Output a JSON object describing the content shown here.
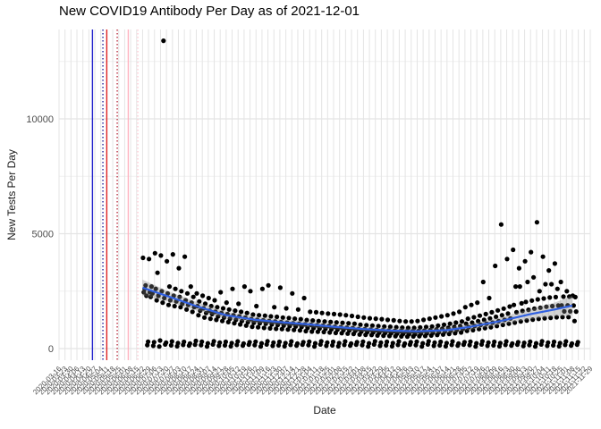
{
  "title": "New COVID19 Antibody Per Day as of 2021-12-01",
  "chart_data": {
    "type": "scatter",
    "title": "New COVID19 Antibody Per Day as of 2021-12-01",
    "xlabel": "Date",
    "ylabel": "New Tests Per Day",
    "ylim": [
      -500,
      13900
    ],
    "y_ticks": [
      0,
      5000,
      10000
    ],
    "y_minor_ticks": [
      2500,
      7500,
      12500
    ],
    "grid": "on",
    "legend_position": "none",
    "colors": {
      "point": "#000000",
      "smooth_line": "#3060e0",
      "smooth_ribbon": "#858585",
      "grid_major": "#e4e4e4",
      "grid_minor": "#f0f0f0",
      "tick_text": "#4d4d4d",
      "vline_blue_solid": "#2222cc",
      "vline_blue_dotted": "#222299",
      "vline_red_solid": "#dd2222",
      "vline_red_dotted": "#bb3344",
      "vline_pink_solid": "#ffb3c0",
      "vline_pink_dotted": "#ffccd5"
    },
    "vlines": [
      {
        "w": 5.6,
        "color": "#2222cc",
        "dash": "solid"
      },
      {
        "w": 7.35,
        "color": "#222299",
        "dash": "dotted"
      },
      {
        "w": 8.0,
        "color": "#dd2222",
        "dash": "solid"
      },
      {
        "w": 9.75,
        "color": "#bb3344",
        "dash": "dotted"
      },
      {
        "w": 11.6,
        "color": "#ffb3c0",
        "dash": "solid"
      },
      {
        "w": 13.2,
        "color": "#ffccd5",
        "dash": "dotted"
      }
    ],
    "x_tick_labels": [
      "2020-03-16",
      "2020-03-23",
      "2020-03-30",
      "2020-04-06",
      "2020-04-13",
      "2020-04-20",
      "2020-04-27",
      "2020-05-04",
      "2020-05-11",
      "2020-05-18",
      "2020-05-25",
      "2020-06-01",
      "2020-06-08",
      "2020-06-15",
      "2020-06-22",
      "2020-06-29",
      "2020-07-06",
      "2020-07-13",
      "2020-07-20",
      "2020-07-27",
      "2020-08-03",
      "2020-08-10",
      "2020-08-17",
      "2020-08-24",
      "2020-08-31",
      "2020-09-07",
      "2020-09-14",
      "2020-09-21",
      "2020-09-28",
      "2020-10-05",
      "2020-10-12",
      "2020-10-19",
      "2020-10-26",
      "2020-11-02",
      "2020-11-09",
      "2020-11-16",
      "2020-11-23",
      "2020-11-30",
      "2020-12-07",
      "2020-12-14",
      "2020-12-21",
      "2020-12-28",
      "2021-01-04",
      "2021-01-11",
      "2021-01-18",
      "2021-01-25",
      "2021-02-01",
      "2021-02-08",
      "2021-02-15",
      "2021-02-22",
      "2021-03-01",
      "2021-03-08",
      "2021-03-15",
      "2021-03-22",
      "2021-03-29",
      "2021-04-05",
      "2021-04-12",
      "2021-04-19",
      "2021-04-26",
      "2021-05-03",
      "2021-05-10",
      "2021-05-17",
      "2021-05-24",
      "2021-05-31",
      "2021-06-07",
      "2021-06-14",
      "2021-06-21",
      "2021-06-28",
      "2021-07-05",
      "2021-07-12",
      "2021-07-19",
      "2021-07-26",
      "2021-08-02",
      "2021-08-09",
      "2021-08-16",
      "2021-08-23",
      "2021-08-30",
      "2021-09-06",
      "2021-09-13",
      "2021-09-20",
      "2021-09-27",
      "2021-10-04",
      "2021-10-11",
      "2021-10-18",
      "2021-10-25",
      "2021-11-01",
      "2021-11-08",
      "2021-11-15",
      "2021-11-22",
      "2021-11-29"
    ],
    "day_offsets": [
      0.07,
      0.5,
      0.21,
      0.64,
      0.36,
      0.79,
      0.93
    ],
    "points_weekly_rows": [
      [
        14,
        3950,
        2750,
        2450,
        2300,
        2600,
        150,
        300
      ],
      [
        15,
        3900,
        2700,
        2450,
        2400,
        2250,
        120,
        280
      ],
      [
        16,
        4150,
        3300,
        2600,
        2300,
        2100,
        90,
        350
      ],
      [
        17,
        4050,
        13400,
        2500,
        2200,
        2000,
        180,
        260
      ],
      [
        18,
        3800,
        2700,
        2400,
        2100,
        1900,
        140,
        310
      ],
      [
        19,
        4100,
        2600,
        2300,
        2050,
        1850,
        100,
        240
      ],
      [
        20,
        3500,
        2500,
        2250,
        1950,
        1800,
        160,
        290
      ],
      [
        21,
        4000,
        2400,
        2100,
        1900,
        1700,
        130,
        220
      ],
      [
        22,
        2700,
        2250,
        2000,
        1800,
        1600,
        170,
        330
      ],
      [
        23,
        2400,
        2050,
        1850,
        1650,
        1450,
        150,
        300
      ],
      [
        24,
        2300,
        1950,
        1750,
        1550,
        1350,
        90,
        230
      ],
      [
        25,
        2200,
        1850,
        1650,
        1500,
        1300,
        180,
        320
      ],
      [
        26,
        2100,
        1800,
        1600,
        1400,
        1250,
        120,
        260
      ],
      [
        27,
        2450,
        1750,
        1550,
        1350,
        1200,
        140,
        290
      ],
      [
        28,
        2000,
        1700,
        1500,
        1300,
        1150,
        100,
        240
      ],
      [
        29,
        2600,
        1650,
        1450,
        1250,
        1100,
        160,
        310
      ],
      [
        30,
        1950,
        1600,
        1400,
        1200,
        1050,
        130,
        220
      ],
      [
        31,
        2700,
        1550,
        1350,
        1150,
        1000,
        170,
        280
      ],
      [
        32,
        2500,
        1480,
        1280,
        1120,
        950,
        150,
        300
      ],
      [
        33,
        1850,
        1450,
        1250,
        1100,
        930,
        90,
        230
      ],
      [
        34,
        2600,
        1430,
        1230,
        1080,
        900,
        180,
        320
      ],
      [
        35,
        2750,
        1400,
        1200,
        1050,
        880,
        120,
        260
      ],
      [
        36,
        1800,
        1380,
        1180,
        1030,
        860,
        140,
        290
      ],
      [
        37,
        2650,
        1350,
        1150,
        1000,
        850,
        100,
        240
      ],
      [
        38,
        1750,
        1330,
        1130,
        980,
        830,
        160,
        310
      ],
      [
        39,
        2400,
        1300,
        1100,
        960,
        810,
        130,
        220
      ],
      [
        40,
        1700,
        1280,
        1080,
        940,
        790,
        170,
        280
      ],
      [
        41,
        2200,
        1240,
        1050,
        900,
        760,
        150,
        300
      ],
      [
        42,
        1600,
        1220,
        1030,
        890,
        740,
        90,
        230
      ],
      [
        43,
        1580,
        1200,
        1010,
        870,
        730,
        180,
        320
      ],
      [
        44,
        1550,
        1180,
        1000,
        860,
        720,
        120,
        260
      ],
      [
        45,
        1520,
        1160,
        980,
        840,
        700,
        140,
        290
      ],
      [
        46,
        1500,
        1140,
        950,
        820,
        680,
        100,
        240
      ],
      [
        47,
        1480,
        1120,
        930,
        800,
        670,
        160,
        310
      ],
      [
        48,
        1450,
        1100,
        910,
        790,
        650,
        130,
        220
      ],
      [
        49,
        1420,
        1080,
        890,
        770,
        640,
        170,
        280
      ],
      [
        50,
        1380,
        1040,
        850,
        740,
        610,
        150,
        300
      ],
      [
        51,
        1350,
        1020,
        840,
        720,
        600,
        90,
        230
      ],
      [
        52,
        1320,
        1000,
        820,
        710,
        590,
        180,
        320
      ],
      [
        53,
        1300,
        980,
        800,
        690,
        570,
        120,
        260
      ],
      [
        54,
        1280,
        960,
        790,
        680,
        560,
        140,
        290
      ],
      [
        55,
        1250,
        950,
        780,
        670,
        550,
        100,
        240
      ],
      [
        56,
        1230,
        930,
        760,
        650,
        540,
        160,
        310
      ],
      [
        57,
        1200,
        910,
        750,
        640,
        530,
        130,
        220
      ],
      [
        58,
        1180,
        900,
        740,
        630,
        520,
        170,
        280
      ],
      [
        59,
        1180,
        900,
        750,
        630,
        530,
        150,
        300
      ],
      [
        60,
        1200,
        920,
        760,
        650,
        540,
        90,
        230
      ],
      [
        61,
        1250,
        940,
        780,
        670,
        550,
        180,
        320
      ],
      [
        62,
        1300,
        960,
        800,
        690,
        570,
        120,
        260
      ],
      [
        63,
        1350,
        1000,
        830,
        710,
        590,
        140,
        290
      ],
      [
        64,
        1400,
        1040,
        860,
        740,
        610,
        100,
        240
      ],
      [
        65,
        1450,
        1080,
        900,
        780,
        640,
        160,
        310
      ],
      [
        66,
        1520,
        1130,
        940,
        810,
        670,
        130,
        220
      ],
      [
        67,
        1600,
        1180,
        980,
        850,
        700,
        170,
        280
      ],
      [
        68,
        1800,
        1300,
        1080,
        930,
        770,
        150,
        300
      ],
      [
        69,
        1900,
        1360,
        1130,
        980,
        800,
        90,
        230
      ],
      [
        70,
        2000,
        1430,
        1190,
        1030,
        850,
        180,
        320
      ],
      [
        71,
        2900,
        1500,
        1250,
        1080,
        890,
        120,
        260
      ],
      [
        72,
        2200,
        1580,
        1310,
        1130,
        930,
        140,
        290
      ],
      [
        73,
        3600,
        1660,
        1380,
        1190,
        980,
        100,
        240
      ],
      [
        74,
        5400,
        1740,
        1450,
        1250,
        1030,
        160,
        310
      ],
      [
        75,
        3900,
        1830,
        1520,
        1310,
        1080,
        130,
        220
      ],
      [
        76,
        4300,
        2700,
        1900,
        1580,
        1130,
        170,
        280
      ],
      [
        77,
        3500,
        1970,
        2700,
        1640,
        1180,
        110,
        250
      ],
      [
        78,
        3800,
        2900,
        2030,
        1690,
        1220,
        150,
        300
      ],
      [
        79,
        4200,
        3100,
        2090,
        1740,
        1260,
        90,
        230
      ],
      [
        80,
        5500,
        2500,
        2140,
        1780,
        1290,
        180,
        320
      ],
      [
        81,
        4000,
        2800,
        2180,
        1820,
        1320,
        120,
        260
      ],
      [
        82,
        3400,
        2800,
        2220,
        1850,
        1340,
        140,
        290
      ],
      [
        83,
        3700,
        2600,
        2240,
        1870,
        1360,
        100,
        240
      ],
      [
        84,
        2900,
        2260,
        1880,
        1620,
        1370,
        160,
        310
      ],
      [
        85,
        2500,
        2260,
        1880,
        1620,
        1370,
        130,
        220
      ],
      [
        86,
        2300,
        2240,
        1870,
        1610,
        1200,
        170,
        280
      ]
    ],
    "smooth": [
      [
        14,
        2650,
        350
      ],
      [
        18,
        2300,
        230
      ],
      [
        23,
        1850,
        180
      ],
      [
        28,
        1450,
        150
      ],
      [
        33,
        1250,
        140
      ],
      [
        37,
        1150,
        130
      ],
      [
        42,
        1050,
        120
      ],
      [
        46,
        950,
        115
      ],
      [
        51,
        850,
        110
      ],
      [
        56,
        780,
        110
      ],
      [
        60,
        750,
        110
      ],
      [
        65,
        800,
        120
      ],
      [
        69,
        950,
        130
      ],
      [
        74,
        1200,
        160
      ],
      [
        79,
        1500,
        220
      ],
      [
        83,
        1700,
        300
      ],
      [
        86,
        1870,
        430
      ]
    ]
  }
}
